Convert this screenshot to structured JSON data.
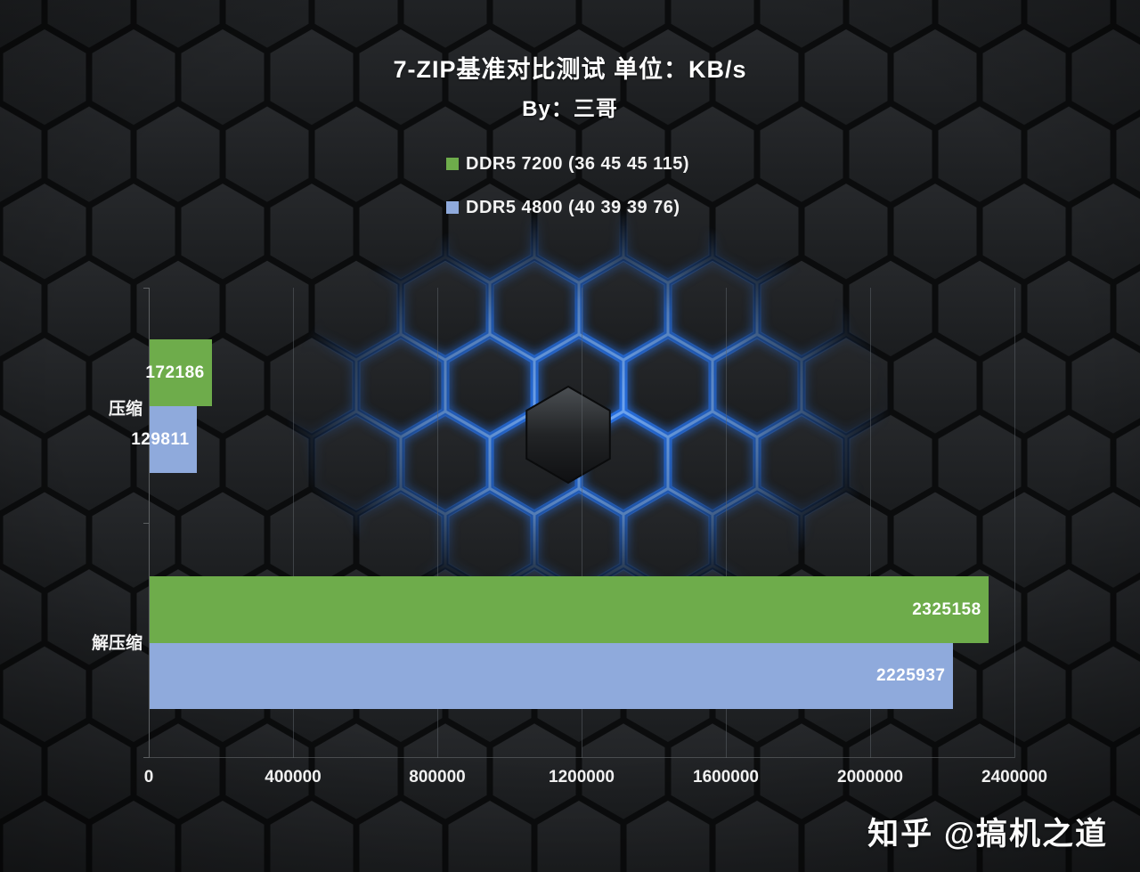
{
  "header": {
    "title": "7-ZIP基准对比测试 单位：KB/s",
    "subtitle": "By：三哥"
  },
  "legend": {
    "items": [
      {
        "label": "DDR5 7200 (36 45 45 115)",
        "color": "#6EAC4B"
      },
      {
        "label": "DDR5 4800 (40 39 39 76)",
        "color": "#8FAADC"
      }
    ]
  },
  "chart_data": {
    "type": "bar",
    "orientation": "horizontal",
    "title": "7-ZIP基准对比测试 单位：KB/s",
    "unit": "KB/s",
    "categories": [
      "压缩",
      "解压缩"
    ],
    "series": [
      {
        "name": "DDR5 7200 (36 45 45 115)",
        "color": "#6EAC4B",
        "values": [
          172186,
          2325158
        ]
      },
      {
        "name": "DDR5 4800 (40 39 39 76)",
        "color": "#8FAADC",
        "values": [
          129811,
          2225937
        ]
      }
    ],
    "xlim": [
      0,
      2400000
    ],
    "x_ticks": [
      0,
      400000,
      800000,
      1200000,
      1600000,
      2000000,
      2400000
    ],
    "grid": "vertical",
    "legend_position": "top"
  },
  "watermark": "知乎 @搞机之道",
  "colors": {
    "background": "#141517",
    "glow_blue": "#2b7dff",
    "text": "#ffffff",
    "axis": "#5d6062"
  }
}
